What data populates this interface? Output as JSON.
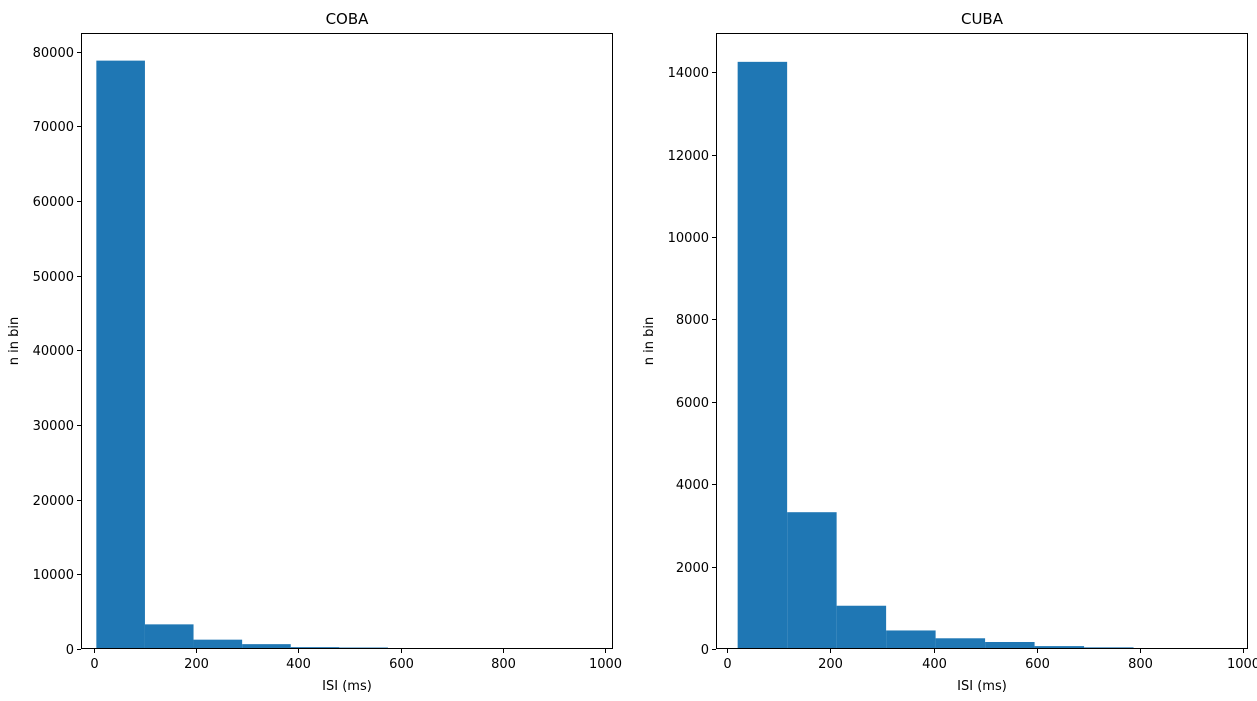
{
  "chart_data": [
    {
      "type": "bar",
      "title": "COBA",
      "xlabel": "ISI (ms)",
      "ylabel": "n in bin",
      "xlim": [
        -25,
        1015
      ],
      "ylim": [
        0,
        82500
      ],
      "xticks": [
        0,
        200,
        400,
        600,
        800,
        1000
      ],
      "yticks": [
        0,
        10000,
        20000,
        30000,
        40000,
        50000,
        60000,
        70000,
        80000
      ],
      "color": "#1f77b4",
      "bins": [
        {
          "x0": 5,
          "x1": 100,
          "count": 78800
        },
        {
          "x0": 100,
          "x1": 195,
          "count": 3300
        },
        {
          "x0": 195,
          "x1": 290,
          "count": 1250
        },
        {
          "x0": 290,
          "x1": 385,
          "count": 650
        },
        {
          "x0": 385,
          "x1": 480,
          "count": 250
        },
        {
          "x0": 480,
          "x1": 575,
          "count": 200
        },
        {
          "x0": 575,
          "x1": 670,
          "count": 100
        },
        {
          "x0": 670,
          "x1": 765,
          "count": 80
        },
        {
          "x0": 765,
          "x1": 860,
          "count": 50
        }
      ]
    },
    {
      "type": "bar",
      "title": "CUBA",
      "xlabel": "ISI (ms)",
      "ylabel": "n in bin",
      "xlim": [
        -22,
        1010
      ],
      "ylim": [
        0,
        14950
      ],
      "xticks": [
        0,
        200,
        400,
        600,
        800,
        1000
      ],
      "yticks": [
        0,
        2000,
        4000,
        6000,
        8000,
        10000,
        12000,
        14000
      ],
      "color": "#1f77b4",
      "bins": [
        {
          "x0": 20,
          "x1": 116,
          "count": 14250
        },
        {
          "x0": 116,
          "x1": 212,
          "count": 3320
        },
        {
          "x0": 212,
          "x1": 308,
          "count": 1050
        },
        {
          "x0": 308,
          "x1": 404,
          "count": 450
        },
        {
          "x0": 404,
          "x1": 500,
          "count": 260
        },
        {
          "x0": 500,
          "x1": 596,
          "count": 170
        },
        {
          "x0": 596,
          "x1": 692,
          "count": 70
        },
        {
          "x0": 692,
          "x1": 788,
          "count": 40
        },
        {
          "x0": 788,
          "x1": 884,
          "count": 20
        },
        {
          "x0": 884,
          "x1": 980,
          "count": 10
        }
      ]
    }
  ]
}
